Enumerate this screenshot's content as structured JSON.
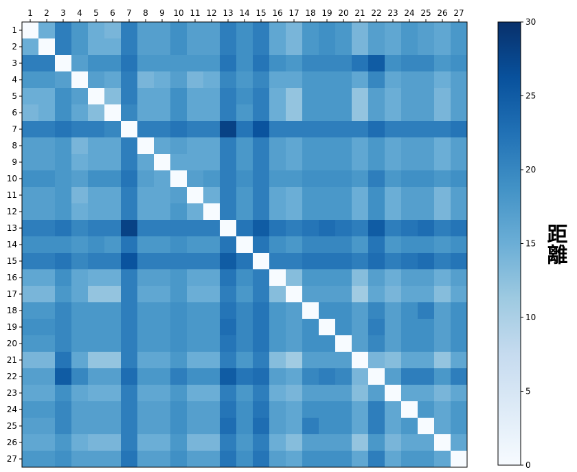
{
  "chart_data": {
    "type": "heatmap",
    "title": "",
    "xlabel": "",
    "ylabel": "",
    "x_tick_labels": [
      "1",
      "2",
      "3",
      "4",
      "5",
      "6",
      "7",
      "8",
      "9",
      "10",
      "11",
      "12",
      "13",
      "14",
      "15",
      "16",
      "17",
      "18",
      "19",
      "20",
      "21",
      "22",
      "23",
      "24",
      "25",
      "26",
      "27"
    ],
    "y_tick_labels": [
      "1",
      "2",
      "3",
      "4",
      "5",
      "6",
      "7",
      "8",
      "9",
      "10",
      "11",
      "12",
      "13",
      "14",
      "15",
      "16",
      "17",
      "18",
      "19",
      "20",
      "21",
      "22",
      "23",
      "24",
      "25",
      "26",
      "27"
    ],
    "x_tick_position": "top",
    "colorbar": {
      "label": "距離",
      "range": [
        0,
        30
      ],
      "ticks": [
        "0",
        "5",
        "10",
        "15",
        "20",
        "25",
        "30"
      ],
      "colormap": "Blues",
      "low_color": "#f7fbff",
      "high_color": "#08306b"
    },
    "matrix": [
      [
        0,
        15,
        21,
        18,
        15,
        14,
        21,
        17,
        17,
        19,
        17,
        17,
        21,
        19,
        21,
        16,
        14,
        18,
        19,
        18,
        14,
        17,
        16,
        18,
        17,
        16,
        18
      ],
      [
        15,
        0,
        21,
        18,
        15,
        15,
        21,
        17,
        17,
        19,
        17,
        17,
        21,
        19,
        21,
        16,
        14,
        18,
        19,
        18,
        14,
        17,
        16,
        18,
        17,
        16,
        18
      ],
      [
        21,
        21,
        0,
        17,
        19,
        19,
        22,
        18,
        18,
        18,
        18,
        18,
        22,
        19,
        22,
        19,
        18,
        20,
        20,
        20,
        22,
        25,
        19,
        20,
        20,
        18,
        19
      ],
      [
        18,
        18,
        17,
        0,
        17,
        16,
        21,
        14,
        15,
        17,
        14,
        15,
        20,
        18,
        20,
        16,
        16,
        18,
        18,
        18,
        16,
        20,
        16,
        17,
        17,
        15,
        17
      ],
      [
        15,
        15,
        19,
        17,
        0,
        13,
        21,
        16,
        16,
        19,
        16,
        16,
        21,
        19,
        21,
        15,
        12,
        18,
        18,
        18,
        12,
        17,
        15,
        17,
        17,
        14,
        17
      ],
      [
        14,
        15,
        19,
        16,
        13,
        0,
        20,
        16,
        16,
        19,
        16,
        16,
        21,
        18,
        21,
        15,
        12,
        18,
        18,
        18,
        12,
        17,
        15,
        17,
        17,
        14,
        17
      ],
      [
        21,
        21,
        22,
        21,
        21,
        20,
        0,
        21,
        21,
        22,
        21,
        21,
        28,
        22,
        26,
        21,
        21,
        21,
        21,
        21,
        21,
        23,
        21,
        21,
        21,
        21,
        22
      ],
      [
        17,
        17,
        18,
        14,
        16,
        16,
        21,
        0,
        16,
        17,
        16,
        16,
        21,
        18,
        21,
        17,
        16,
        18,
        18,
        18,
        16,
        18,
        16,
        17,
        17,
        15,
        17
      ],
      [
        17,
        17,
        18,
        15,
        16,
        16,
        21,
        16,
        0,
        16,
        16,
        16,
        21,
        18,
        21,
        17,
        16,
        18,
        18,
        18,
        16,
        18,
        16,
        17,
        17,
        15,
        17
      ],
      [
        19,
        19,
        18,
        17,
        19,
        19,
        22,
        17,
        16,
        0,
        17,
        18,
        21,
        19,
        21,
        18,
        18,
        19,
        19,
        19,
        18,
        21,
        18,
        19,
        19,
        18,
        19
      ],
      [
        17,
        17,
        18,
        14,
        16,
        16,
        21,
        16,
        16,
        17,
        0,
        15,
        21,
        18,
        21,
        16,
        15,
        18,
        18,
        18,
        15,
        19,
        15,
        17,
        17,
        14,
        17
      ],
      [
        17,
        17,
        18,
        15,
        16,
        16,
        21,
        16,
        16,
        18,
        15,
        0,
        21,
        18,
        21,
        16,
        15,
        18,
        18,
        18,
        15,
        19,
        15,
        17,
        17,
        14,
        17
      ],
      [
        21,
        21,
        22,
        20,
        21,
        21,
        28,
        21,
        21,
        21,
        21,
        21,
        0,
        22,
        25,
        22,
        21,
        22,
        23,
        22,
        21,
        25,
        21,
        22,
        23,
        21,
        22
      ],
      [
        19,
        19,
        19,
        18,
        19,
        18,
        22,
        18,
        18,
        19,
        18,
        18,
        22,
        0,
        22,
        19,
        18,
        20,
        20,
        20,
        18,
        22,
        18,
        19,
        19,
        18,
        19
      ],
      [
        21,
        21,
        22,
        20,
        21,
        21,
        26,
        21,
        21,
        21,
        21,
        21,
        25,
        22,
        0,
        21,
        21,
        22,
        22,
        22,
        21,
        23,
        21,
        22,
        23,
        21,
        22
      ],
      [
        16,
        16,
        19,
        16,
        15,
        15,
        21,
        17,
        17,
        18,
        16,
        16,
        22,
        19,
        21,
        0,
        13,
        18,
        18,
        18,
        13,
        17,
        15,
        17,
        17,
        15,
        17
      ],
      [
        14,
        14,
        18,
        16,
        12,
        12,
        21,
        16,
        16,
        18,
        15,
        15,
        21,
        18,
        21,
        13,
        0,
        17,
        17,
        17,
        11,
        16,
        14,
        16,
        16,
        13,
        16
      ],
      [
        18,
        18,
        20,
        18,
        18,
        18,
        21,
        18,
        18,
        19,
        18,
        18,
        22,
        20,
        22,
        18,
        17,
        0,
        19,
        19,
        17,
        20,
        17,
        19,
        21,
        17,
        19
      ],
      [
        19,
        19,
        20,
        18,
        18,
        18,
        21,
        18,
        18,
        19,
        18,
        18,
        23,
        20,
        22,
        18,
        17,
        19,
        0,
        19,
        17,
        21,
        17,
        19,
        19,
        17,
        19
      ],
      [
        18,
        18,
        20,
        18,
        18,
        18,
        21,
        18,
        18,
        19,
        18,
        18,
        22,
        20,
        22,
        18,
        17,
        19,
        19,
        0,
        17,
        20,
        17,
        19,
        19,
        17,
        19
      ],
      [
        14,
        14,
        22,
        16,
        12,
        12,
        21,
        16,
        16,
        18,
        15,
        15,
        21,
        18,
        21,
        13,
        11,
        17,
        17,
        17,
        0,
        14,
        13,
        16,
        16,
        12,
        16
      ],
      [
        17,
        17,
        25,
        20,
        17,
        17,
        23,
        18,
        18,
        21,
        19,
        19,
        25,
        22,
        23,
        17,
        16,
        20,
        21,
        20,
        14,
        0,
        17,
        21,
        21,
        18,
        21
      ],
      [
        16,
        16,
        19,
        16,
        15,
        15,
        21,
        16,
        16,
        18,
        15,
        15,
        21,
        18,
        21,
        15,
        14,
        17,
        17,
        17,
        13,
        17,
        0,
        16,
        16,
        14,
        16
      ],
      [
        18,
        18,
        20,
        17,
        17,
        17,
        21,
        17,
        17,
        19,
        17,
        17,
        22,
        19,
        22,
        17,
        16,
        19,
        19,
        19,
        16,
        21,
        16,
        0,
        18,
        16,
        18
      ],
      [
        17,
        17,
        20,
        17,
        17,
        17,
        21,
        17,
        17,
        19,
        17,
        17,
        23,
        19,
        23,
        17,
        16,
        21,
        19,
        19,
        16,
        21,
        16,
        18,
        0,
        16,
        18
      ],
      [
        16,
        16,
        18,
        15,
        14,
        14,
        21,
        15,
        15,
        18,
        14,
        14,
        21,
        18,
        21,
        15,
        13,
        17,
        17,
        17,
        12,
        18,
        14,
        16,
        16,
        0,
        16
      ],
      [
        18,
        18,
        19,
        17,
        17,
        17,
        22,
        17,
        17,
        19,
        17,
        17,
        22,
        19,
        22,
        17,
        16,
        19,
        19,
        19,
        16,
        21,
        16,
        18,
        18,
        16,
        0
      ]
    ]
  }
}
